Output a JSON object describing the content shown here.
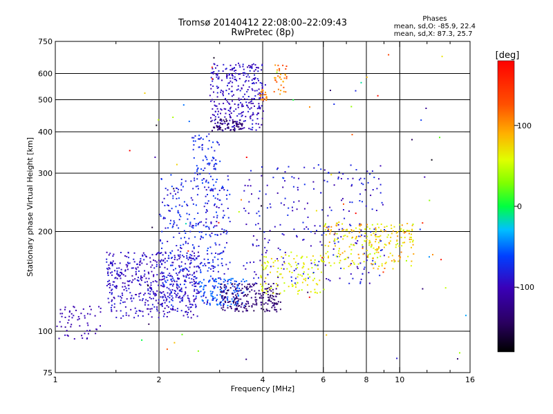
{
  "header": {
    "title": "Tromsø 20140412 22:08:00–22:09:43",
    "subtitle": "RwPretec (8p)"
  },
  "phase_stats": {
    "title": "Phases",
    "line_o": "mean, sd,O: -85.9, 22.4",
    "line_x": "mean, sd,X: 87.3, 25.7"
  },
  "colorbar": {
    "unit_label": "[deg]",
    "range": [
      -180,
      180
    ],
    "ticks": [
      100,
      0,
      -100
    ]
  },
  "chart_data": {
    "type": "scatter",
    "title": "Tromsø 20140412 22:08:00–22:09:43",
    "subtitle": "RwPretec (8p)",
    "xlabel": "Frequency [MHz]",
    "ylabel": "Stationary phase Virtual Height [km]",
    "x_scale": "log",
    "y_scale": "log",
    "xlim": [
      1,
      16
    ],
    "ylim": [
      75,
      750
    ],
    "x_ticks": [
      1,
      2,
      4,
      6,
      8,
      10,
      16
    ],
    "x_minor_ticks": [
      1.5,
      3,
      5,
      7,
      9,
      12,
      14
    ],
    "y_ticks": [
      75,
      100,
      200,
      300,
      400,
      500,
      600,
      750
    ],
    "grid_x": [
      2,
      4,
      6,
      8,
      10
    ],
    "grid_y": [
      100,
      200,
      300,
      400,
      500,
      600
    ],
    "color_variable": "phase (deg)",
    "clusters": [
      {
        "f": [
          1.0,
          1.35
        ],
        "h": [
          95,
          120
        ],
        "phase": [
          -110,
          -95
        ],
        "n": 60
      },
      {
        "f": [
          1.4,
          2.6
        ],
        "h": [
          110,
          175
        ],
        "phase": [
          -110,
          -80
        ],
        "n": 500
      },
      {
        "f": [
          2.0,
          3.2
        ],
        "h": [
          120,
          300
        ],
        "phase": [
          -100,
          -60
        ],
        "n": 400
      },
      {
        "f": [
          2.6,
          3.6
        ],
        "h": [
          120,
          145
        ],
        "phase": [
          -65,
          -45
        ],
        "n": 120
      },
      {
        "f": [
          2.5,
          3.0
        ],
        "h": [
          300,
          400
        ],
        "phase": [
          -90,
          -60
        ],
        "n": 60
      },
      {
        "f": [
          2.8,
          4.0
        ],
        "h": [
          405,
          650
        ],
        "phase": [
          -110,
          -80
        ],
        "n": 320
      },
      {
        "f": [
          2.8,
          3.5
        ],
        "h": [
          405,
          440
        ],
        "phase": [
          -150,
          -130
        ],
        "n": 60
      },
      {
        "f": [
          3.9,
          4.1
        ],
        "h": [
          500,
          540
        ],
        "phase": [
          95,
          120
        ],
        "n": 20
      },
      {
        "f": [
          4.3,
          4.7
        ],
        "h": [
          520,
          640
        ],
        "phase": [
          85,
          140
        ],
        "n": 35
      },
      {
        "f": [
          3.0,
          4.5
        ],
        "h": [
          115,
          140
        ],
        "phase": [
          -150,
          -120
        ],
        "n": 220
      },
      {
        "f": [
          3.9,
          6.0
        ],
        "h": [
          130,
          170
        ],
        "phase": [
          45,
          80
        ],
        "n": 120
      },
      {
        "f": [
          3.5,
          9.0
        ],
        "h": [
          140,
          320
        ],
        "phase": [
          -110,
          -70
        ],
        "n": 260
      },
      {
        "f": [
          6.0,
          11.0
        ],
        "h": [
          155,
          215
        ],
        "phase": [
          40,
          110
        ],
        "n": 200
      },
      {
        "f": [
          8.0,
          11.0
        ],
        "h": [
          180,
          210
        ],
        "phase": [
          60,
          80
        ],
        "n": 40
      },
      {
        "f": [
          1.5,
          16.0
        ],
        "h": [
          80,
          700
        ],
        "phase": [
          -180,
          180
        ],
        "n": 80
      }
    ]
  }
}
